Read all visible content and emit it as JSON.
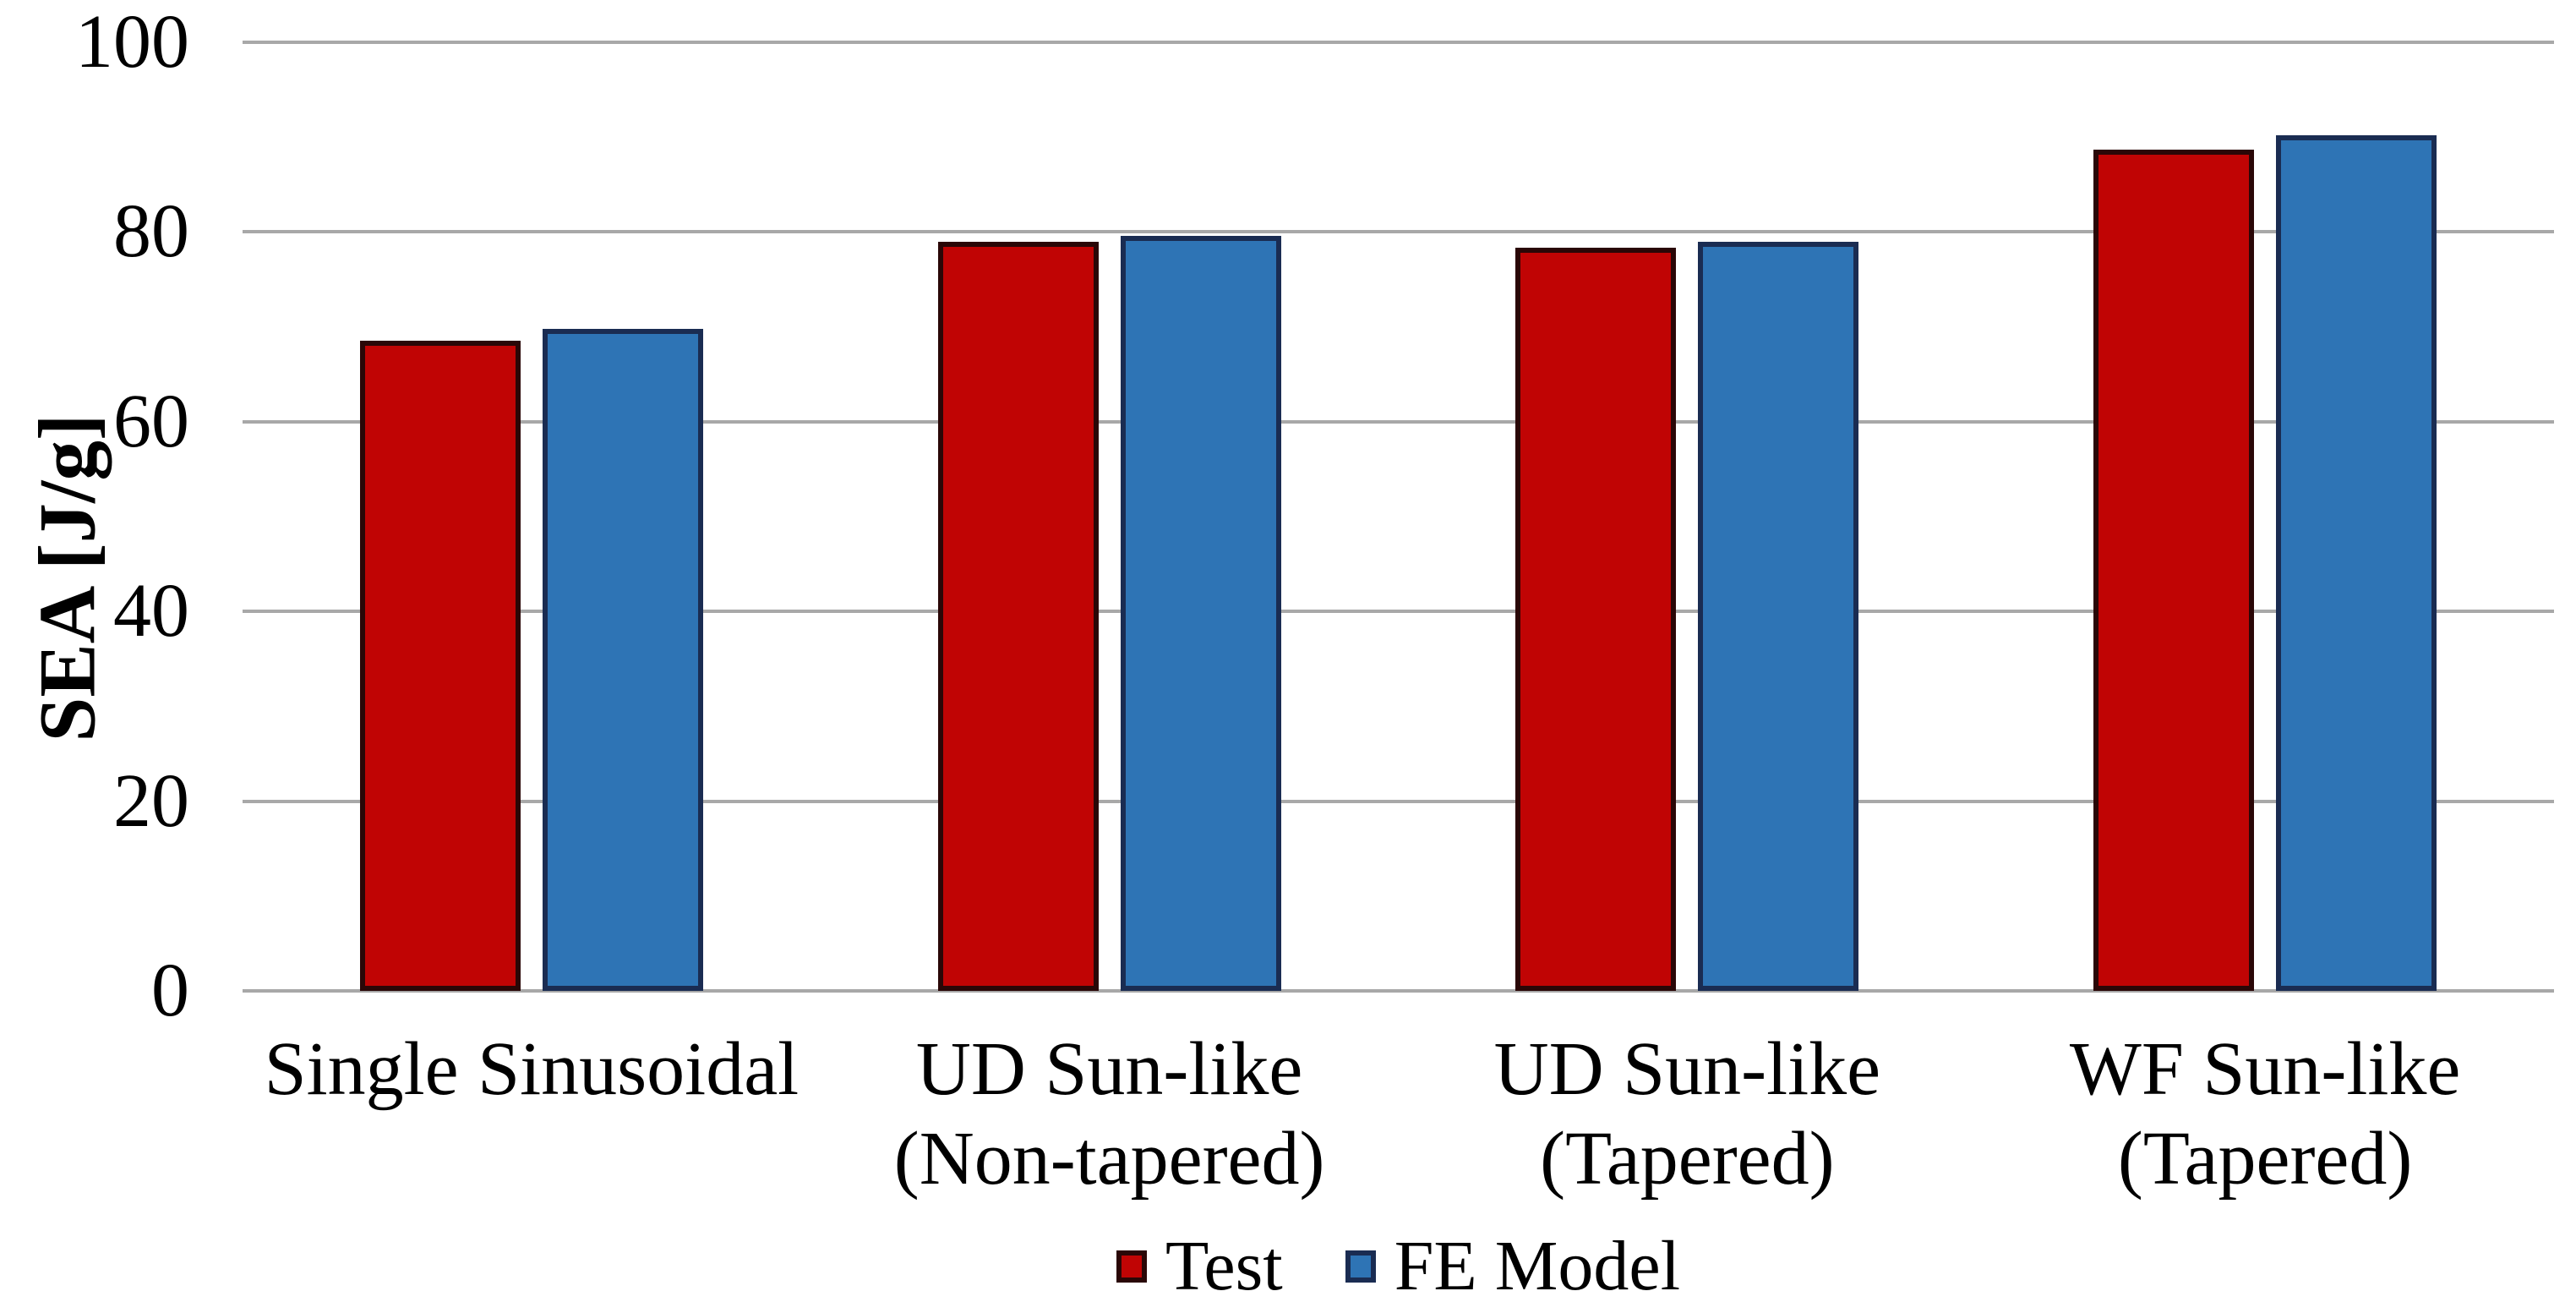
{
  "chart_data": {
    "type": "bar",
    "title": "",
    "xlabel": "",
    "ylabel": "SEA [J/g]",
    "ylim": [
      0,
      100
    ],
    "yticks": [
      0,
      20,
      40,
      60,
      80,
      100
    ],
    "grid": true,
    "gridline_color": "#A8A8A8",
    "background": "#FFFFFF",
    "text_color": "#000000",
    "legend_position": "bottom",
    "categories": [
      "Single Sinusoidal",
      "UD Sun-like\n(Non-tapered)",
      "UD Sun-like\n(Tapered)",
      "WF Sun-like\n(Tapered)"
    ],
    "series": [
      {
        "name": "Test",
        "fill_color": "#C00404",
        "border_color": "#2A0707",
        "values": [
          68.5,
          79.0,
          78.3,
          88.7
        ]
      },
      {
        "name": "FE Model",
        "fill_color": "#2E74B5",
        "border_color": "#1A2C52",
        "values": [
          69.8,
          79.6,
          79.0,
          90.2
        ]
      }
    ]
  }
}
